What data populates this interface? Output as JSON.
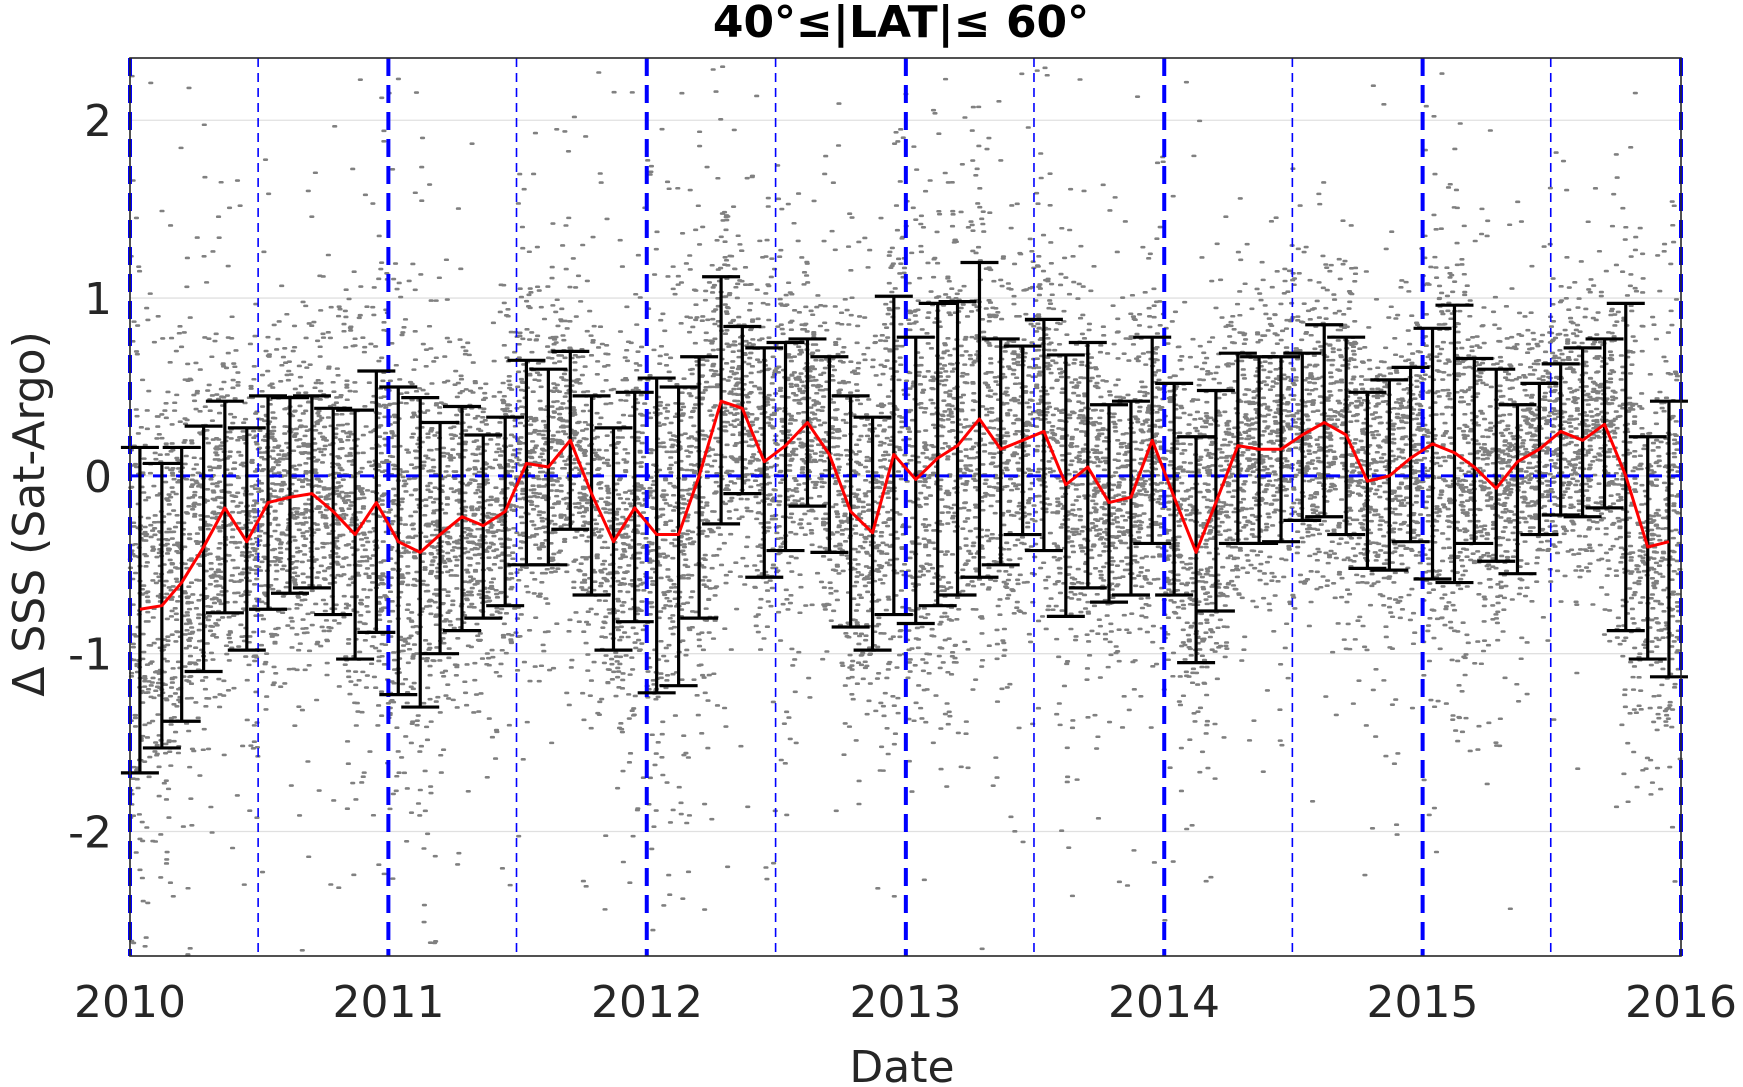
{
  "chart_data": {
    "type": "line",
    "title": "40°≤|LAT|≤ 60°",
    "xlabel": "Date",
    "ylabel": "Δ SSS (Sat-Argo)",
    "xlim": [
      "2010-01-01",
      "2016-01-01"
    ],
    "ylim": [
      -2.7,
      2.35
    ],
    "xtick_labels": [
      "2010",
      "2011",
      "2012",
      "2013",
      "2014",
      "2015",
      "2016"
    ],
    "ytick_values": [
      2,
      1,
      0,
      -1,
      -2
    ],
    "ytick_labels": [
      "2",
      "1",
      "0",
      "-1",
      "-2"
    ],
    "grid": "horizontal",
    "legend": "none",
    "colors": {
      "mean_line": "#ff0000",
      "error_bar": "#000000",
      "scatter": "#808080",
      "reference": "#0000ff"
    },
    "zero_reference_line": 0,
    "year_lines": [
      "2010-01-01",
      "2011-01-01",
      "2012-01-01",
      "2013-01-01",
      "2014-01-01",
      "2015-01-01",
      "2016-01-01"
    ],
    "half_year_lines": [
      "2010-07-01",
      "2011-07-01",
      "2012-07-01",
      "2013-07-01",
      "2014-07-01",
      "2015-07-01"
    ],
    "series": [
      {
        "x": [
          "2010-01-15",
          "2010-02-15",
          "2010-03-15",
          "2010-04-15",
          "2010-05-15",
          "2010-06-15",
          "2010-07-15",
          "2010-08-15",
          "2010-09-15",
          "2010-10-15",
          "2010-11-15",
          "2010-12-15",
          "2011-01-15",
          "2011-02-15",
          "2011-03-15",
          "2011-04-15",
          "2011-05-15",
          "2011-06-15",
          "2011-07-15",
          "2011-08-15",
          "2011-09-15",
          "2011-10-15",
          "2011-11-15",
          "2011-12-15",
          "2012-01-15",
          "2012-02-15",
          "2012-03-15",
          "2012-04-15",
          "2012-05-15",
          "2012-06-15",
          "2012-07-15",
          "2012-08-15",
          "2012-09-15",
          "2012-10-15",
          "2012-11-15",
          "2012-12-15",
          "2013-01-15",
          "2013-02-15",
          "2013-03-15",
          "2013-04-15",
          "2013-05-15",
          "2013-06-15",
          "2013-07-15",
          "2013-08-15",
          "2013-09-15",
          "2013-10-15",
          "2013-11-15",
          "2013-12-15",
          "2014-01-15",
          "2014-02-15",
          "2014-03-15",
          "2014-04-15",
          "2014-05-15",
          "2014-06-15",
          "2014-07-15",
          "2014-08-15",
          "2014-09-15",
          "2014-10-15",
          "2014-11-15",
          "2014-12-15",
          "2015-01-15",
          "2015-02-15",
          "2015-03-15",
          "2015-04-15",
          "2015-05-15",
          "2015-06-15",
          "2015-07-15",
          "2015-08-15",
          "2015-09-15",
          "2015-10-15",
          "2015-11-15",
          "2015-12-15"
        ],
        "mean": [
          -0.75,
          -0.73,
          -0.6,
          -0.4,
          -0.18,
          -0.37,
          -0.15,
          -0.12,
          -0.1,
          -0.2,
          -0.33,
          -0.15,
          -0.37,
          -0.43,
          -0.33,
          -0.23,
          -0.28,
          -0.2,
          0.07,
          0.05,
          0.2,
          -0.1,
          -0.37,
          -0.18,
          -0.33,
          -0.33,
          0.0,
          0.42,
          0.38,
          0.08,
          0.17,
          0.3,
          0.12,
          -0.2,
          -0.32,
          0.12,
          -0.02,
          0.1,
          0.17,
          0.32,
          0.15,
          0.2,
          0.25,
          -0.05,
          0.05,
          -0.15,
          -0.12,
          0.2,
          -0.12,
          -0.43,
          -0.15,
          0.17,
          0.15,
          0.15,
          0.23,
          0.3,
          0.23,
          -0.03,
          0.0,
          0.1,
          0.18,
          0.13,
          0.05,
          -0.07,
          0.08,
          0.15,
          0.25,
          0.2,
          0.29,
          0.0,
          -0.4,
          -0.37
        ],
        "lower": [
          -1.67,
          -1.53,
          -1.38,
          -1.1,
          -0.77,
          -0.98,
          -0.75,
          -0.66,
          -0.63,
          -0.78,
          -1.03,
          -0.88,
          -1.23,
          -1.3,
          -1.0,
          -0.87,
          -0.8,
          -0.73,
          -0.5,
          -0.5,
          -0.3,
          -0.67,
          -0.98,
          -0.82,
          -1.22,
          -1.18,
          -0.8,
          -0.27,
          -0.1,
          -0.57,
          -0.42,
          -0.17,
          -0.43,
          -0.85,
          -0.98,
          -0.78,
          -0.83,
          -0.73,
          -0.67,
          -0.57,
          -0.5,
          -0.33,
          -0.42,
          -0.79,
          -0.63,
          -0.71,
          -0.67,
          -0.38,
          -0.67,
          -1.05,
          -0.76,
          -0.38,
          -0.38,
          -0.37,
          -0.25,
          -0.23,
          -0.33,
          -0.52,
          -0.53,
          -0.37,
          -0.58,
          -0.6,
          -0.38,
          -0.48,
          -0.55,
          -0.33,
          -0.22,
          -0.23,
          -0.18,
          -0.87,
          -1.03,
          -1.13
        ],
        "upper": [
          0.16,
          0.07,
          0.16,
          0.28,
          0.42,
          0.27,
          0.45,
          0.44,
          0.45,
          0.38,
          0.37,
          0.59,
          0.5,
          0.44,
          0.3,
          0.39,
          0.23,
          0.33,
          0.65,
          0.6,
          0.7,
          0.45,
          0.27,
          0.47,
          0.55,
          0.5,
          0.67,
          1.12,
          0.84,
          0.72,
          0.75,
          0.77,
          0.67,
          0.45,
          0.33,
          1.01,
          0.78,
          0.97,
          0.98,
          1.2,
          0.77,
          0.73,
          0.88,
          0.68,
          0.75,
          0.4,
          0.42,
          0.78,
          0.52,
          0.22,
          0.48,
          0.69,
          0.67,
          0.67,
          0.69,
          0.85,
          0.78,
          0.47,
          0.54,
          0.61,
          0.83,
          0.96,
          0.66,
          0.6,
          0.4,
          0.52,
          0.63,
          0.72,
          0.77,
          0.97,
          0.22,
          0.42
        ]
      }
    ]
  }
}
